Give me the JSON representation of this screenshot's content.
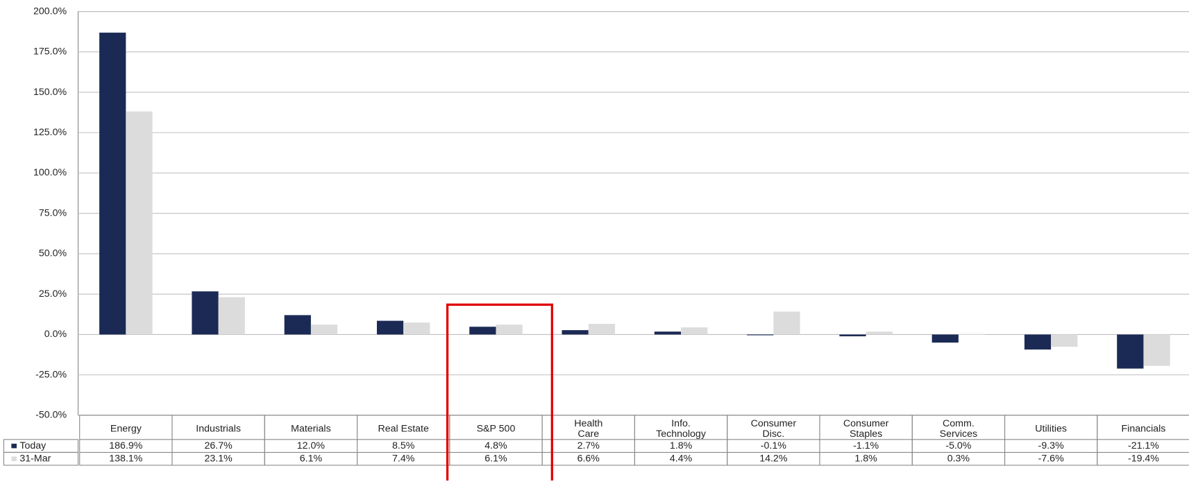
{
  "chart_data": {
    "type": "bar",
    "categories": [
      "Energy",
      "Industrials",
      "Materials",
      "Real Estate",
      "S&P 500",
      "Health\nCare",
      "Info.\nTechnology",
      "Consumer\nDisc.",
      "Consumer\nStaples",
      "Comm.\nServices",
      "Utilities",
      "Financials"
    ],
    "series": [
      {
        "name": "Today",
        "color": "#1b2a55",
        "values": [
          186.9,
          26.7,
          12.0,
          8.5,
          4.8,
          2.7,
          1.8,
          -0.1,
          -1.1,
          -5.0,
          -9.3,
          -21.1
        ],
        "value_labels": [
          "186.9%",
          "26.7%",
          "12.0%",
          "8.5%",
          "4.8%",
          "2.7%",
          "1.8%",
          "-0.1%",
          "-1.1%",
          "-5.0%",
          "-9.3%",
          "-21.1%"
        ]
      },
      {
        "name": "31-Mar",
        "color": "#dcdcdc",
        "values": [
          138.1,
          23.1,
          6.1,
          7.4,
          6.1,
          6.6,
          4.4,
          14.2,
          1.8,
          0.3,
          -7.6,
          -19.4
        ],
        "value_labels": [
          "138.1%",
          "23.1%",
          "6.1%",
          "7.4%",
          "6.1%",
          "6.6%",
          "4.4%",
          "14.2%",
          "1.8%",
          "0.3%",
          "-7.6%",
          "-19.4%"
        ]
      }
    ],
    "ylim": [
      -50,
      200
    ],
    "yticks": [
      {
        "value": -50,
        "label": "-50.0%"
      },
      {
        "value": -25,
        "label": "-25.0%"
      },
      {
        "value": 0,
        "label": "0.0%"
      },
      {
        "value": 25,
        "label": "25.0%"
      },
      {
        "value": 50,
        "label": "50.0%"
      },
      {
        "value": 75,
        "label": "75.0%"
      },
      {
        "value": 100,
        "label": "100.0%"
      },
      {
        "value": 125,
        "label": "125.0%"
      },
      {
        "value": 150,
        "label": "150.0%"
      },
      {
        "value": 175,
        "label": "175.0%"
      },
      {
        "value": 200,
        "label": "200.0%"
      }
    ],
    "grid": true
  }
}
